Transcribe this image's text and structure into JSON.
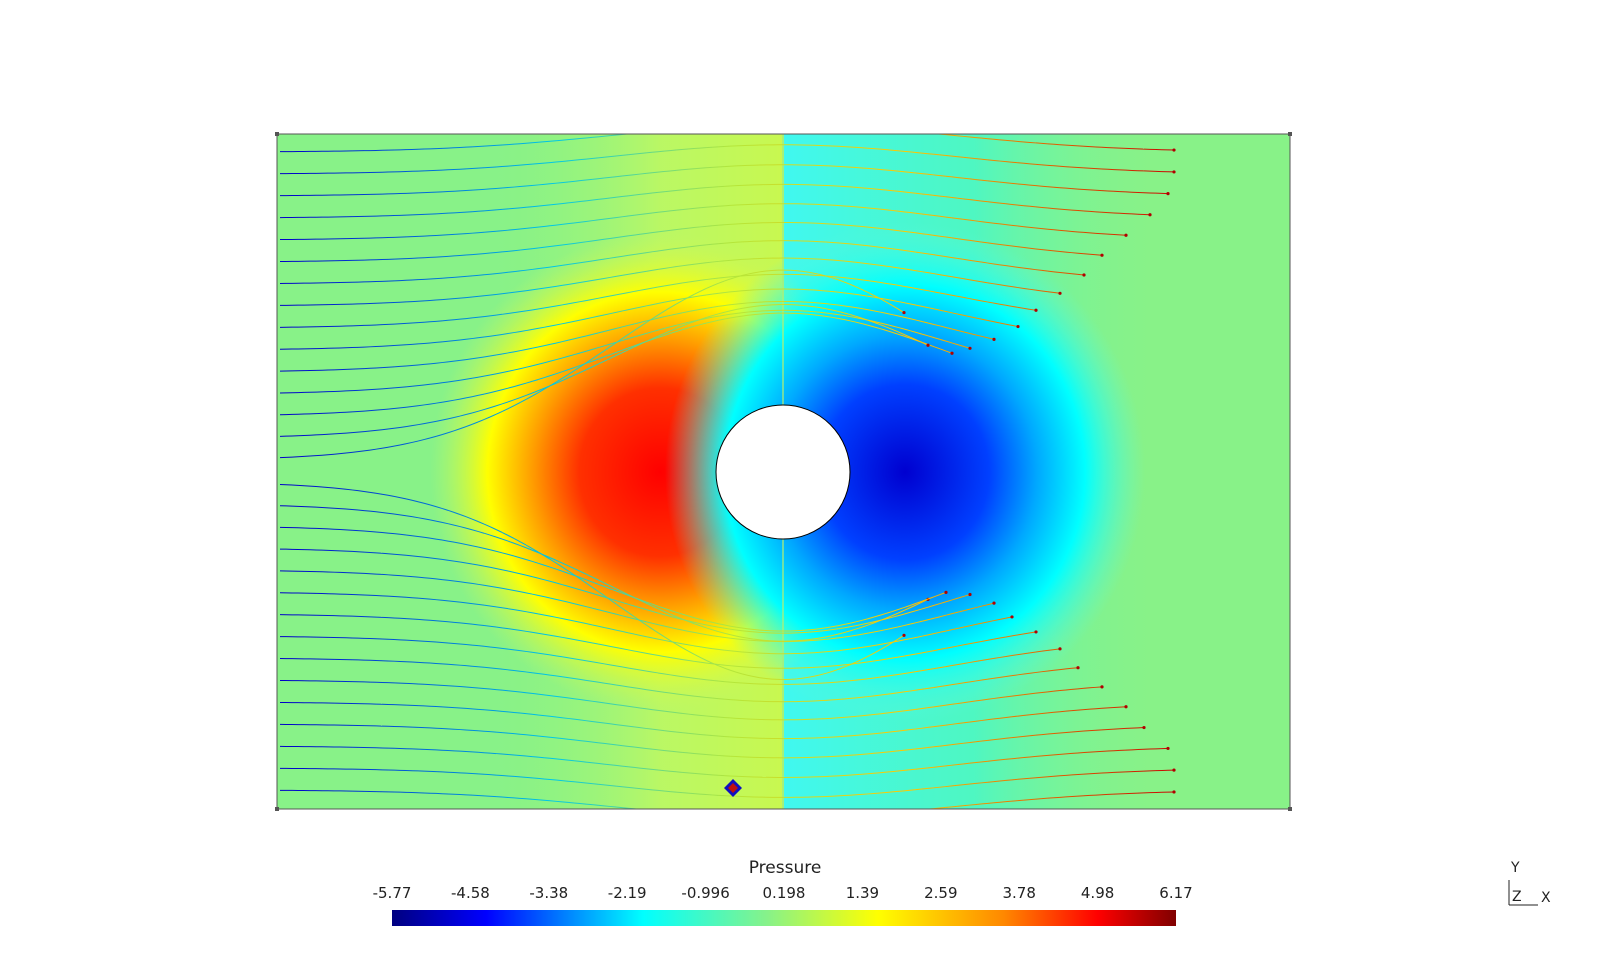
{
  "colorbar": {
    "title": "Pressure",
    "ticks": [
      "-5.77",
      "-4.58",
      "-3.38",
      "-2.19",
      "-0.996",
      "0.198",
      "1.39",
      "2.59",
      "3.78",
      "4.98",
      "6.17"
    ]
  },
  "axes_widget": {
    "y": "Y",
    "z": "Z",
    "x": "X"
  },
  "colors": {
    "background": "#ffffff",
    "far_field": "#88f288",
    "frame": "#555555",
    "colormap": [
      "#000080",
      "#0000ff",
      "#00ffff",
      "#88f288",
      "#ffff00",
      "#ff8800",
      "#ff0000",
      "#800000"
    ]
  }
}
